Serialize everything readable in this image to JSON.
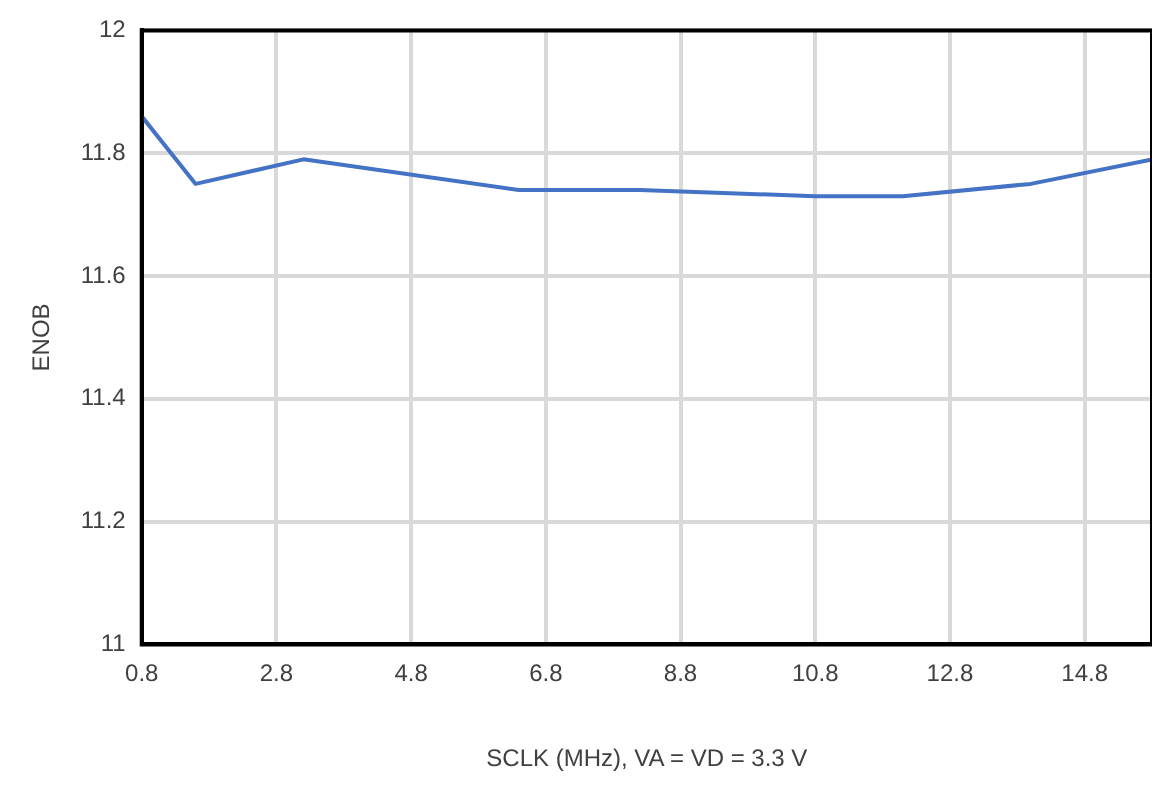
{
  "chart_data": {
    "type": "line",
    "xlabel": "SCLK (MHz), VA = VD = 3.3 V",
    "ylabel": "ENOB",
    "x": [
      0.8,
      1.6,
      3.2,
      6.4,
      8.2,
      10.8,
      12.1,
      14.0,
      15.8
    ],
    "series": [
      {
        "color": "#4472c4",
        "values": [
          11.86,
          11.75,
          11.79,
          11.74,
          11.74,
          11.73,
          11.73,
          11.75,
          11.79
        ]
      }
    ],
    "xlim": [
      0.8,
      15.8
    ],
    "xticks": [
      0.8,
      2.8,
      4.8,
      6.8,
      8.8,
      10.8,
      12.8,
      14.8
    ],
    "ylim": [
      11,
      12
    ],
    "yticks": [
      11,
      11.2,
      11.4,
      11.6,
      11.8,
      12
    ],
    "grid": true,
    "marker": "none",
    "line_style": "solid"
  }
}
